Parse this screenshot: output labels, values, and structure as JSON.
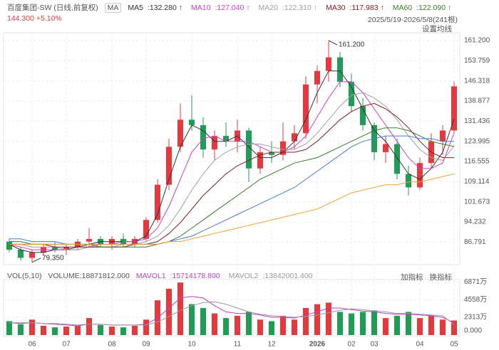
{
  "chart_data": {
    "type": "candlestick",
    "title": "百度集团-SW (日线,前复权)",
    "ma_button": "MA",
    "price_label": "144.300 +5.10%",
    "range_label": "2025/5/19-2026/5/8(241根)",
    "settings_button": "设置均线",
    "up_color": "#e8383d",
    "down_color": "#1f9d55",
    "categories": [
      null,
      null,
      "06",
      null,
      null,
      "07",
      null,
      null,
      null,
      "08",
      null,
      null,
      "09",
      null,
      null,
      null,
      "10",
      null,
      null,
      null,
      "11",
      null,
      null,
      "12",
      null,
      null,
      null,
      "2026",
      null,
      null,
      "02",
      null,
      "03",
      null,
      null,
      null,
      "04",
      null,
      null,
      "05"
    ],
    "candles": [
      [
        87,
        88,
        83,
        84
      ],
      [
        84,
        85,
        80,
        81
      ],
      [
        81,
        84,
        79.35,
        83
      ],
      [
        83,
        86,
        82,
        85
      ],
      [
        85,
        87,
        83,
        84
      ],
      [
        84,
        86,
        82,
        85
      ],
      [
        85,
        88,
        84,
        87
      ],
      [
        87,
        92,
        85,
        88
      ],
      [
        88,
        89,
        85,
        86
      ],
      [
        86,
        89,
        84,
        88
      ],
      [
        88,
        90,
        85,
        86
      ],
      [
        86,
        89,
        85,
        88
      ],
      [
        88,
        96,
        87,
        95
      ],
      [
        95,
        110,
        94,
        108
      ],
      [
        108,
        125,
        106,
        122
      ],
      [
        122,
        138,
        120,
        132
      ],
      [
        132,
        141,
        128,
        130
      ],
      [
        130,
        133,
        118,
        121
      ],
      [
        121,
        128,
        117,
        126
      ],
      [
        126,
        131,
        122,
        124
      ],
      [
        124,
        132,
        120,
        128
      ],
      [
        128,
        129,
        109,
        114
      ],
      [
        114,
        122,
        112,
        120
      ],
      [
        120,
        124,
        116,
        119
      ],
      [
        119,
        131,
        117,
        124
      ],
      [
        124,
        130,
        121,
        127
      ],
      [
        127,
        148,
        125,
        145
      ],
      [
        145,
        152,
        138,
        150
      ],
      [
        150,
        161.2,
        146,
        155
      ],
      [
        155,
        157,
        144,
        146
      ],
      [
        146,
        149,
        135,
        137
      ],
      [
        137,
        140,
        128,
        130
      ],
      [
        130,
        131,
        117,
        120
      ],
      [
        120,
        126,
        116,
        123
      ],
      [
        123,
        125,
        110,
        112
      ],
      [
        112,
        115,
        104,
        107
      ],
      [
        107,
        118,
        106,
        116
      ],
      [
        116,
        127,
        114,
        124
      ],
      [
        124,
        130,
        119,
        128
      ],
      [
        128,
        146,
        127,
        144.3
      ]
    ],
    "series": [
      {
        "name": "MA5",
        "latest": "132.280",
        "color": "#333333",
        "values": [
          86,
          84,
          83,
          83,
          84,
          84,
          85,
          86,
          87,
          87,
          87,
          87,
          89,
          97,
          110,
          122,
          130,
          128,
          124,
          124,
          126,
          122,
          118,
          118,
          120,
          124,
          132,
          142,
          150,
          150,
          144,
          136,
          128,
          124,
          118,
          112,
          110,
          114,
          120,
          132.28
        ]
      },
      {
        "name": "MA10",
        "latest": "127.040",
        "color": "#d63bd6",
        "values": [
          86,
          85,
          84,
          84,
          84,
          84,
          84,
          85,
          86,
          86,
          87,
          87,
          88,
          92,
          100,
          110,
          120,
          125,
          126,
          124,
          124,
          124,
          122,
          120,
          120,
          122,
          126,
          133,
          140,
          146,
          146,
          142,
          136,
          130,
          124,
          118,
          114,
          114,
          116,
          127.04
        ]
      },
      {
        "name": "MA20",
        "latest": "122.310",
        "color": "#a0a0a0",
        "values": [
          86,
          86,
          85,
          85,
          85,
          84,
          84,
          85,
          85,
          85,
          86,
          86,
          87,
          89,
          93,
          99,
          106,
          112,
          117,
          120,
          122,
          123,
          123,
          122,
          121,
          121,
          123,
          127,
          132,
          137,
          141,
          142,
          140,
          137,
          132,
          126,
          121,
          118,
          117,
          122.31
        ]
      },
      {
        "name": "MA30",
        "latest": "117.983",
        "color": "#8b1a1a",
        "values": [
          86,
          86,
          86,
          86,
          85,
          85,
          85,
          85,
          85,
          85,
          85,
          86,
          86,
          87,
          90,
          94,
          99,
          104,
          108,
          112,
          115,
          117,
          119,
          120,
          120,
          120,
          121,
          124,
          128,
          132,
          135,
          137,
          138,
          136,
          133,
          129,
          124,
          120,
          118,
          117.983
        ]
      },
      {
        "name": "MA60",
        "latest": "122.090",
        "color": "#3d7a2a",
        "values": [
          87,
          87,
          86,
          86,
          86,
          86,
          86,
          86,
          85,
          85,
          85,
          85,
          85,
          86,
          87,
          89,
          92,
          95,
          98,
          101,
          104,
          107,
          110,
          112,
          114,
          116,
          117,
          118,
          120,
          122,
          124,
          126,
          128,
          129,
          129,
          128,
          126,
          124,
          123,
          122.09
        ]
      },
      {
        "color": "#4a7bd6",
        "values": [
          88,
          88,
          87,
          87,
          87,
          86,
          86,
          86,
          86,
          86,
          86,
          86,
          86,
          86,
          87,
          88,
          89,
          91,
          93,
          95,
          97,
          99,
          101,
          103,
          105,
          107,
          110,
          113,
          116,
          119,
          122,
          124,
          125,
          126,
          126,
          126,
          125,
          125,
          124,
          124
        ]
      },
      {
        "color": "#f0a030",
        "values": [
          86,
          86,
          86,
          86,
          86,
          86,
          86,
          86,
          86,
          86,
          86,
          86,
          86,
          86,
          87,
          87,
          88,
          89,
          90,
          91,
          92,
          93,
          94,
          95,
          96,
          97,
          98,
          99,
          101,
          103,
          105,
          106,
          107,
          108,
          108,
          109,
          109,
          110,
          111,
          112
        ]
      }
    ],
    "ylim": [
      78.5,
      164.1
    ],
    "yticks": [
      {
        "value": 161.2,
        "label": "161.200"
      },
      153.759,
      146.318,
      138.877,
      131.436,
      123.995,
      116.555,
      109.114,
      101.673,
      94.232,
      86.791
    ],
    "annotations": [
      {
        "label": "161.200",
        "value": 161.2
      },
      {
        "label": "79.350",
        "value": 79.35
      }
    ],
    "grid": true,
    "volume": {
      "title": "VOL(5,10)",
      "latest": "VOLUME:18871812.000",
      "add_button": "加指标",
      "switch_button": "换指标",
      "values": [
        18000000,
        14000000,
        20000000,
        12000000,
        10000000,
        11000000,
        12000000,
        22000000,
        13000000,
        11000000,
        10000000,
        12000000,
        20000000,
        45000000,
        60000000,
        68000000,
        40000000,
        35000000,
        28000000,
        22000000,
        25000000,
        30000000,
        20000000,
        18000000,
        25000000,
        20000000,
        35000000,
        40000000,
        42000000,
        30000000,
        28000000,
        30000000,
        32000000,
        22000000,
        25000000,
        30000000,
        22000000,
        25000000,
        20000000,
        18871812
      ],
      "series": [
        {
          "name": "MAVOL1",
          "latest": "15714178.800",
          "color": "#c040c0",
          "values": [
            16000000,
            15000000,
            16000000,
            15000000,
            14000000,
            13000000,
            12000000,
            14000000,
            14000000,
            13000000,
            13000000,
            13000000,
            14000000,
            22000000,
            35000000,
            48000000,
            50000000,
            48000000,
            38000000,
            30000000,
            28000000,
            28000000,
            26000000,
            23000000,
            23000000,
            22000000,
            26000000,
            30000000,
            35000000,
            35000000,
            33000000,
            31000000,
            30000000,
            28000000,
            27000000,
            27000000,
            26000000,
            25000000,
            23000000,
            15714178.8
          ]
        },
        {
          "name": "MAVOL2",
          "latest": "13842001.400",
          "color": "#999999",
          "values": [
            16000000,
            16000000,
            16000000,
            15000000,
            15000000,
            14000000,
            13000000,
            14000000,
            14000000,
            13000000,
            13000000,
            13000000,
            13000000,
            17000000,
            24000000,
            32000000,
            38000000,
            42000000,
            43000000,
            40000000,
            35000000,
            30000000,
            27000000,
            25000000,
            24000000,
            23000000,
            24000000,
            26000000,
            29000000,
            32000000,
            34000000,
            33000000,
            31000000,
            30000000,
            28000000,
            28000000,
            27000000,
            26000000,
            25000000,
            13842001.4
          ]
        }
      ],
      "ylim": [
        0,
        70000000
      ],
      "yticks": [
        {
          "value": 68710000,
          "label": "6871万"
        },
        {
          "value": 45580000,
          "label": "4558万"
        },
        {
          "value": 23130000,
          "label": "2313万"
        },
        {
          "value": 0,
          "label": "0.000"
        }
      ]
    }
  }
}
